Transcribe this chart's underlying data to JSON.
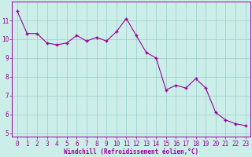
{
  "x": [
    0,
    1,
    2,
    3,
    4,
    5,
    6,
    7,
    8,
    9,
    10,
    11,
    12,
    13,
    14,
    15,
    16,
    17,
    18,
    19,
    20,
    21,
    22,
    23
  ],
  "y": [
    11.5,
    10.3,
    10.3,
    9.8,
    9.7,
    9.8,
    10.2,
    9.9,
    10.1,
    9.9,
    10.4,
    11.1,
    10.2,
    9.3,
    9.0,
    7.3,
    7.55,
    7.4,
    7.9,
    7.4,
    6.1,
    5.7,
    5.5,
    5.4
  ],
  "line_color": "#990099",
  "marker": "+",
  "marker_size": 3,
  "bg_color": "#cceee8",
  "grid_color": "#99cccc",
  "xlabel": "Windchill (Refroidissement éolien,°C)",
  "xlabel_color": "#990099",
  "tick_color": "#990099",
  "xlim_min": -0.5,
  "xlim_max": 23.5,
  "ylim_min": 4.8,
  "ylim_max": 12.0,
  "yticks": [
    5,
    6,
    7,
    8,
    9,
    10,
    11
  ],
  "xticks": [
    0,
    1,
    2,
    3,
    4,
    5,
    6,
    7,
    8,
    9,
    10,
    11,
    12,
    13,
    14,
    15,
    16,
    17,
    18,
    19,
    20,
    21,
    22,
    23
  ],
  "linewidth": 0.8,
  "xlabel_fontsize": 5.5,
  "tick_fontsize": 5.5
}
